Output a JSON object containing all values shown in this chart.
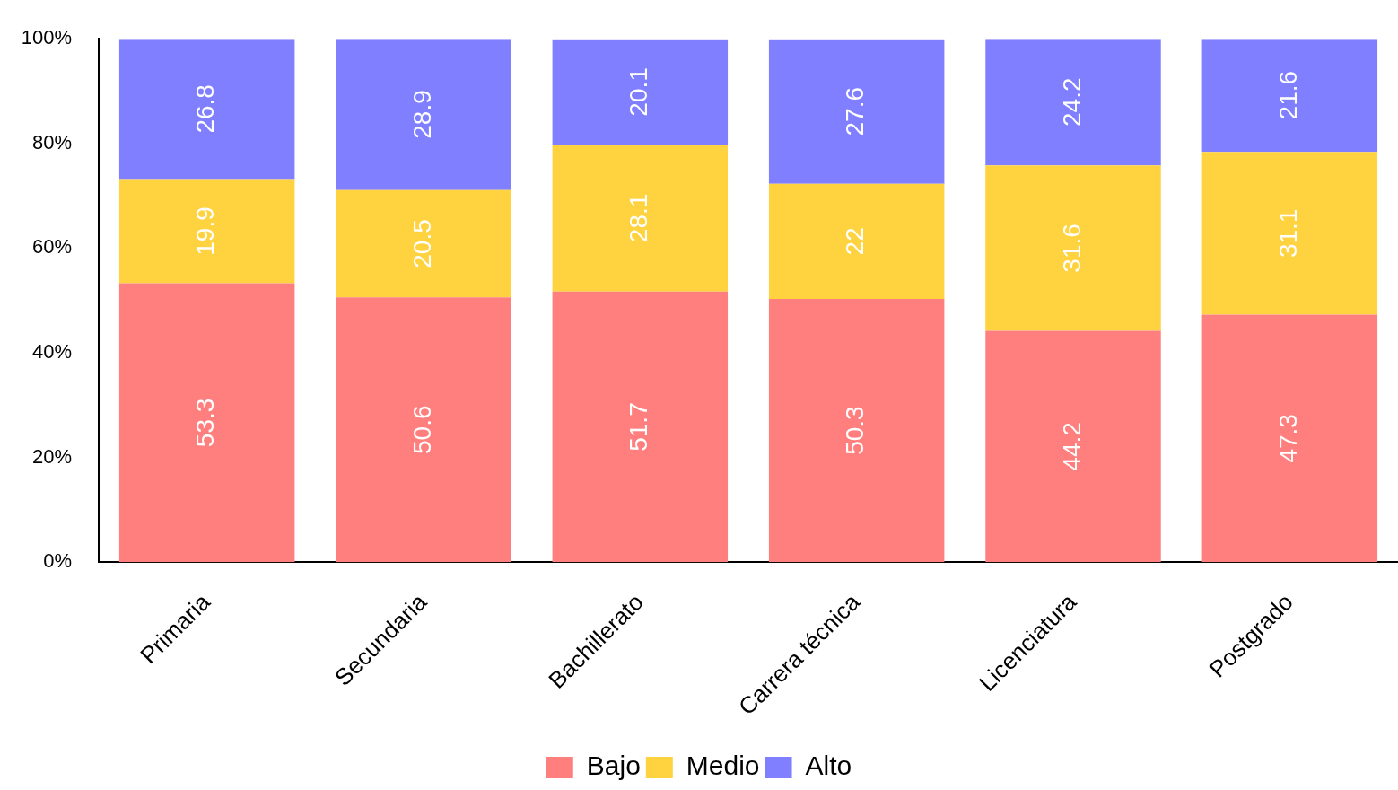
{
  "chart_data": {
    "type": "bar",
    "stacked": true,
    "data_labels": true,
    "grid": false,
    "legend": "bottom",
    "categories": [
      "Primaria",
      "Secundaria",
      "Bachillerato",
      "Carrera técnica",
      "Licenciatura",
      "Postgrado"
    ],
    "series": [
      {
        "name": "Bajo",
        "color": "#ff7f7f",
        "values": [
          53.3,
          50.6,
          51.7,
          50.3,
          44.2,
          47.3
        ]
      },
      {
        "name": "Medio",
        "color": "#ffd23f",
        "values": [
          19.9,
          20.5,
          28.1,
          22,
          31.6,
          31.1
        ]
      },
      {
        "name": "Alto",
        "color": "#7f7fff",
        "values": [
          26.8,
          28.9,
          20.1,
          27.6,
          24.2,
          21.6
        ]
      }
    ],
    "ylim": [
      0,
      100
    ],
    "yticks": [
      {
        "value": 0,
        "label": "0%"
      },
      {
        "value": 20,
        "label": "20%"
      },
      {
        "value": 40,
        "label": "40%"
      },
      {
        "value": 60,
        "label": "60%"
      },
      {
        "value": 80,
        "label": "80%"
      },
      {
        "value": 100,
        "label": "100%"
      }
    ]
  }
}
